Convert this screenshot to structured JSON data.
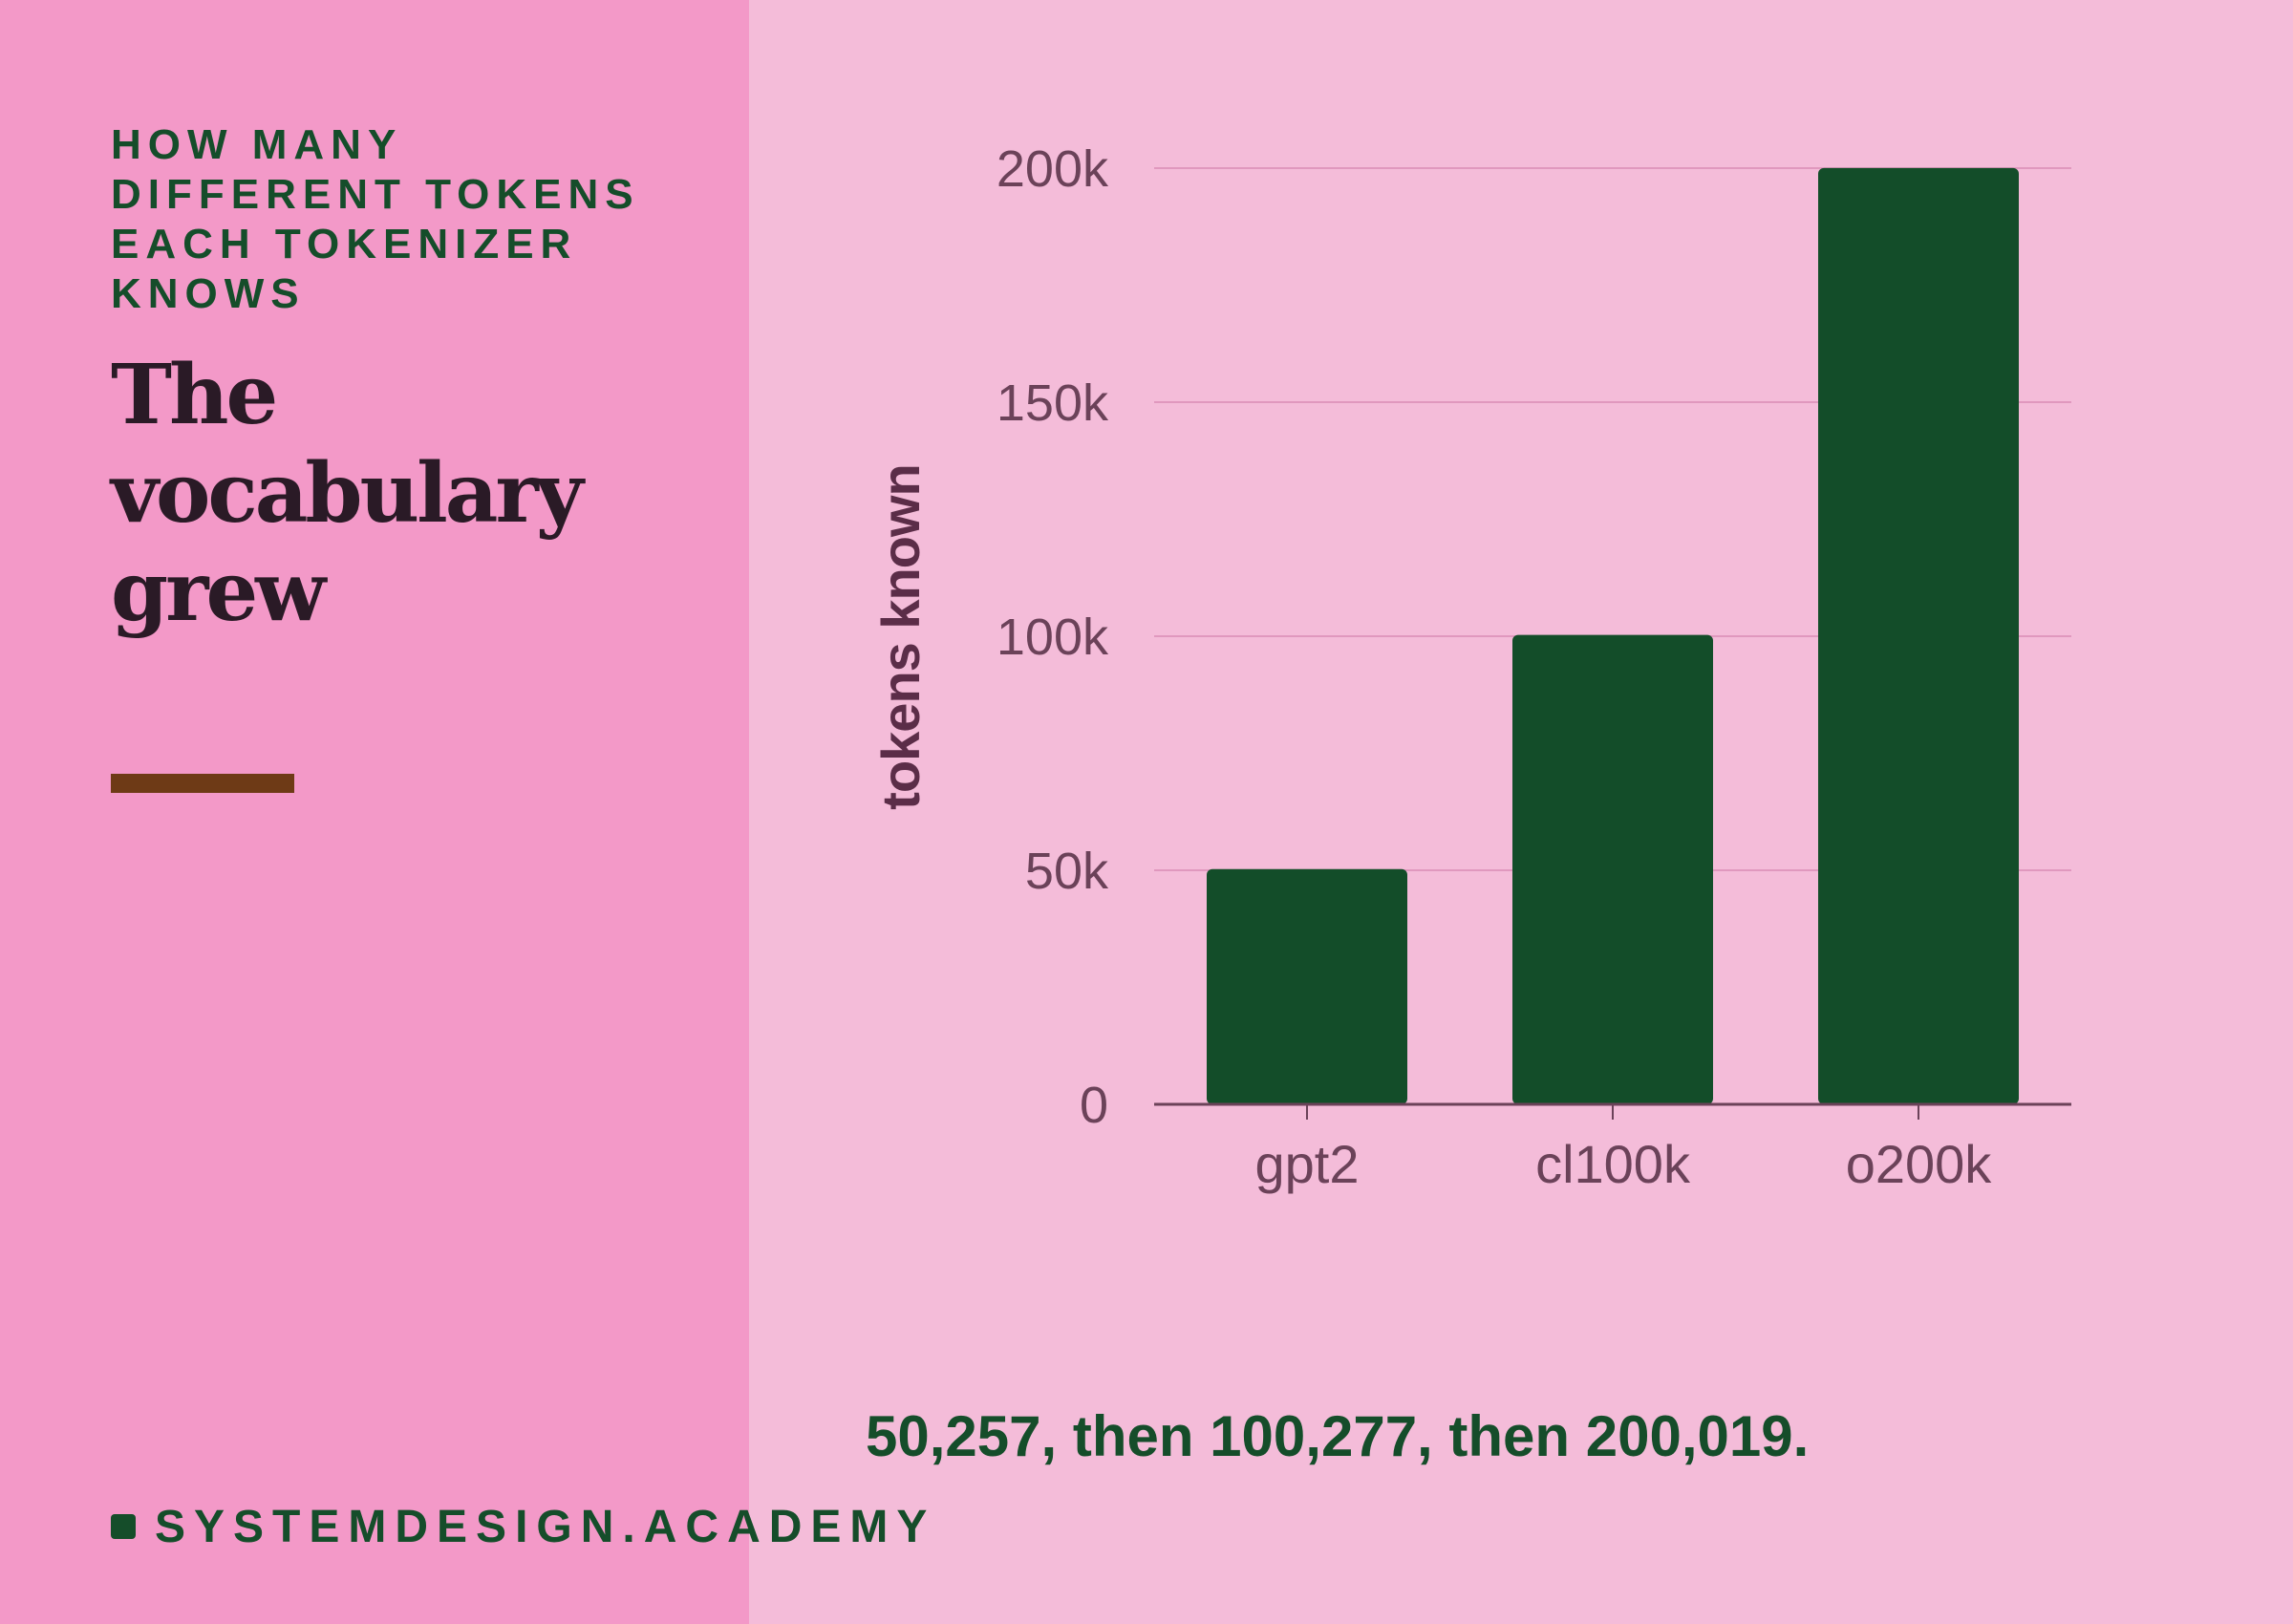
{
  "panel": {
    "eyebrow": "HOW MANY DIFFERENT TOKENS EACH TOKENIZER KNOWS",
    "title": "The vocabulary grew"
  },
  "caption": "50,257, then 100,277, then 200,019.",
  "brand": {
    "name": "SYSTEMDESIGN.ACADEMY"
  },
  "colors": {
    "left_panel": "#f399c8",
    "right_panel": "#f4bcd9",
    "bar": "#134d29",
    "accent_rule": "#6e3a16",
    "text_dark": "#2a1a26",
    "text_green": "#154d2a",
    "axis_text": "#6b4259",
    "gridline": "#d98cb5"
  },
  "chart_data": {
    "type": "bar",
    "categories": [
      "gpt2",
      "cl100k",
      "o200k"
    ],
    "values": [
      50257,
      100277,
      200019
    ],
    "ylabel": "tokens known",
    "xlabel": "",
    "ylim": [
      0,
      200000
    ],
    "yticks": [
      0,
      50000,
      100000,
      150000,
      200000
    ],
    "ytick_labels": [
      "0",
      "50k",
      "100k",
      "150k",
      "200k"
    ],
    "grid": true,
    "legend": "none"
  }
}
